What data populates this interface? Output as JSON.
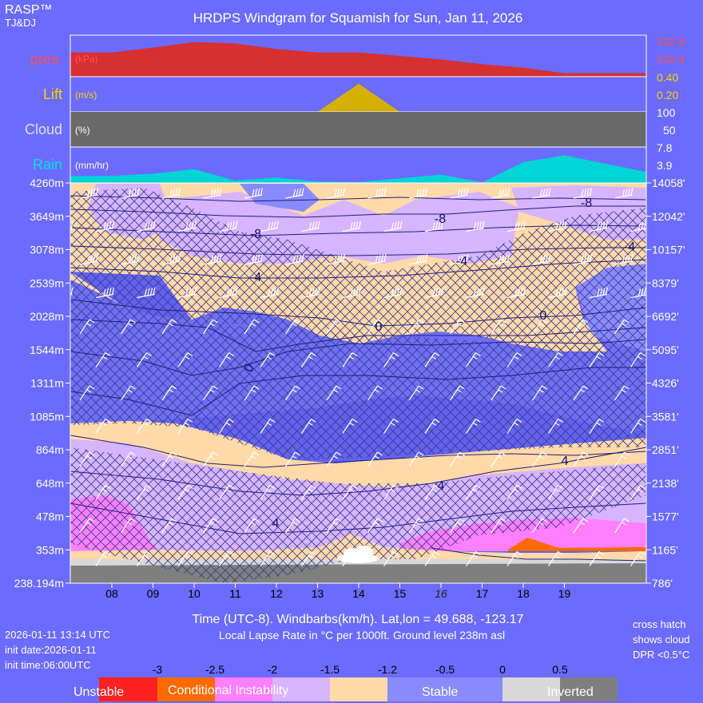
{
  "brand": {
    "title": "RASP™",
    "subtitle": "TJ&DJ"
  },
  "title": "HRDPS Windgram for Squamish for Sun, Jan 11, 2026",
  "colors": {
    "background": "#6b6bff",
    "pressure": "#d73030",
    "lift": "#d4b000",
    "cloud": "#6a6a6a",
    "rain": "#00d4d4",
    "unstable": "#ff2020",
    "conditional": "#ff6a00",
    "pink": "#ff80ff",
    "lavender": "#d6b4ff",
    "peach": "#ffd9a8",
    "stable": "#8a8aff",
    "inverted": "#d8d8d8",
    "deep_stable": "#6262ee",
    "ground": "#7f7f7f"
  },
  "panels": {
    "pressure": {
      "name": "pres.",
      "unit": "(kPa)",
      "right_ticks": [
        "102.8",
        "102.4"
      ]
    },
    "lift": {
      "name": "Lift",
      "unit": "(m/s)",
      "right_ticks": [
        "0.40",
        "0.20"
      ]
    },
    "cloud": {
      "name": "Cloud",
      "unit": "(%)",
      "right_ticks": [
        "100",
        "50"
      ]
    },
    "rain": {
      "name": "Rain",
      "unit": "(mm/hr)",
      "right_ticks": [
        "7.8",
        "3.9"
      ]
    }
  },
  "chart_data": {
    "type": "area",
    "x": [
      "08",
      "09",
      "10",
      "11",
      "12",
      "13",
      "14",
      "15",
      "16",
      "17",
      "18",
      "19"
    ],
    "highlight_x": "16",
    "pressure_kpa": [
      102.55,
      102.62,
      102.7,
      102.68,
      102.6,
      102.55,
      102.55,
      102.5,
      102.45,
      102.38,
      102.33,
      102.25
    ],
    "lift_ms": [
      0,
      0,
      0,
      0,
      0,
      0,
      0.4,
      0,
      0,
      0,
      0,
      0
    ],
    "cloud_pct": [
      100,
      100,
      100,
      100,
      100,
      100,
      100,
      100,
      100,
      100,
      100,
      100
    ],
    "rain_mmhr": [
      1.5,
      2.0,
      3.0,
      0.5,
      1.2,
      0.3,
      0.2,
      1.0,
      1.8,
      0.1,
      4.5,
      6.0
    ],
    "height_axis_m": [
      "4260m",
      "3649m",
      "3078m",
      "2539m",
      "2028m",
      "1544m",
      "1311m",
      "1085m",
      "864m",
      "648m",
      "478m",
      "353m",
      "238.194m"
    ],
    "height_axis_ft": [
      "14058'",
      "12042'",
      "10157'",
      "8379'",
      "6692'",
      "5095'",
      "4326'",
      "3581'",
      "2851'",
      "2138'",
      "1577'",
      "1165'",
      "786'"
    ],
    "isotherm_labels": [
      "-8",
      "-8",
      "-8",
      "-4",
      "-4",
      "-4",
      "0",
      "0",
      "0",
      "4",
      "4",
      "4"
    ],
    "xlabel": "Time (UTC-8). Windbarbs(km/h). Lat,lon = 49.688, -123.17",
    "sublabel": "Local Lapse Rate in °C per 1000ft.   Ground level 238m asl",
    "legend": {
      "values": [
        "-3",
        "-2.5",
        "-2",
        "-1.5",
        "-1.2",
        "-0.5",
        "0",
        "0.5"
      ],
      "categories": [
        "Unstable",
        "Conditional Instability",
        "Stable",
        "Inverted"
      ]
    }
  },
  "info": {
    "run_time": "2026-01-11 13:14 UTC",
    "init_date": "init date:2026-01-11",
    "init_time": "init time:06:00UTC"
  },
  "note": {
    "line1": "cross hatch",
    "line2": "shows cloud",
    "line3": "DPR <0.5°C"
  }
}
